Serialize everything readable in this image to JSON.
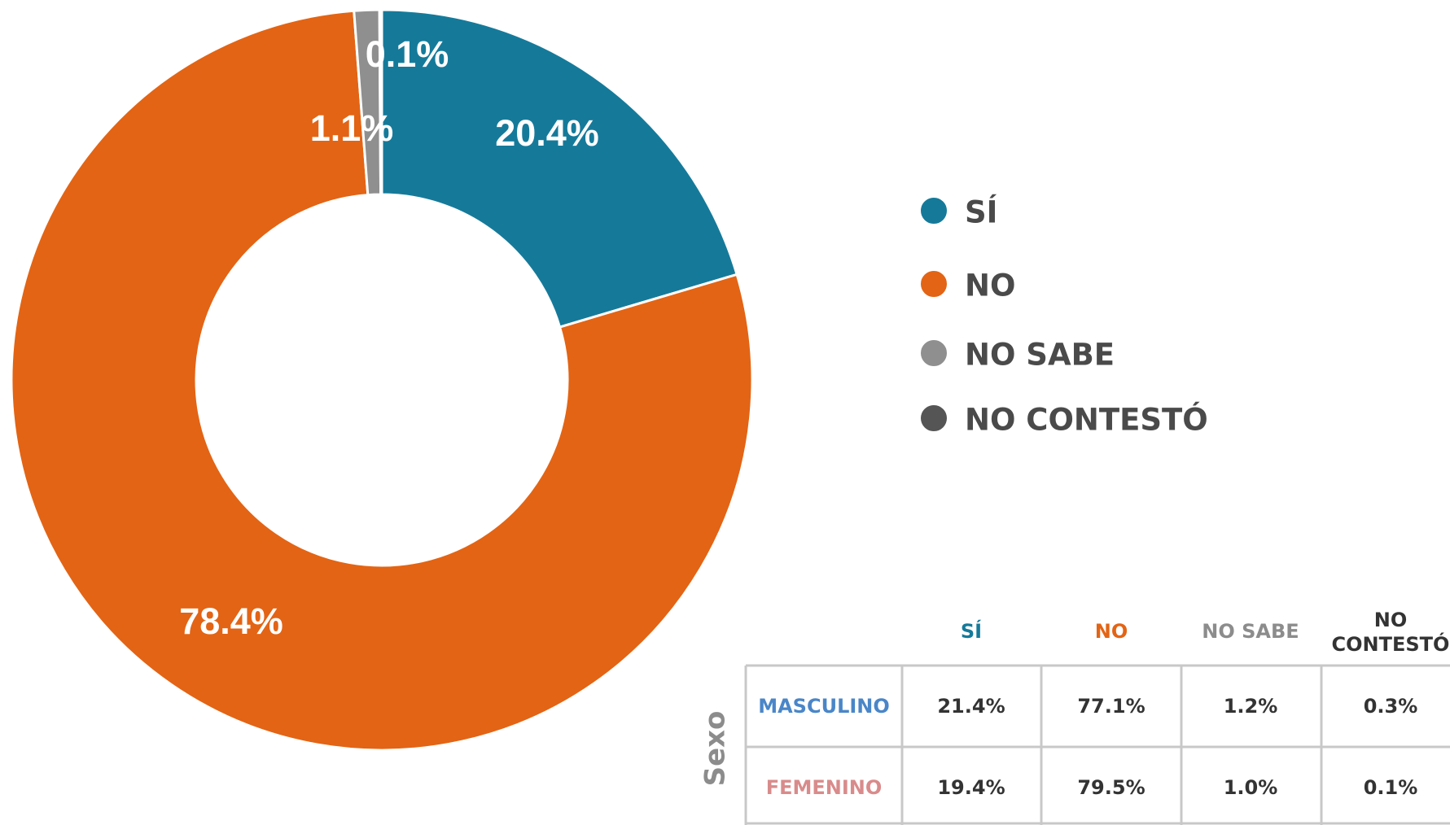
{
  "chart_data": {
    "type": "pie",
    "categories": [
      "SÍ",
      "NO",
      "NO SABE",
      "NO CONTESTÓ"
    ],
    "values": [
      20.4,
      78.4,
      1.1,
      0.1
    ],
    "value_labels": [
      "20.4%",
      "78.4%",
      "1.1%",
      "0.1%"
    ],
    "colors": [
      "#157a9a",
      "#e36414",
      "#8f8f8f",
      "#555555"
    ],
    "legend": "right"
  },
  "table": {
    "row_group": "Sexo",
    "columns": [
      "SÍ",
      "NO",
      "NO SABE",
      "NO CONTESTÓ"
    ],
    "rows": [
      [
        "MASCULINO",
        "21.4%",
        "77.1%",
        "1.2%",
        "0.3%"
      ],
      [
        "FEMENINO",
        "19.4%",
        "79.5%",
        "1.0%",
        "0.1%"
      ]
    ]
  }
}
